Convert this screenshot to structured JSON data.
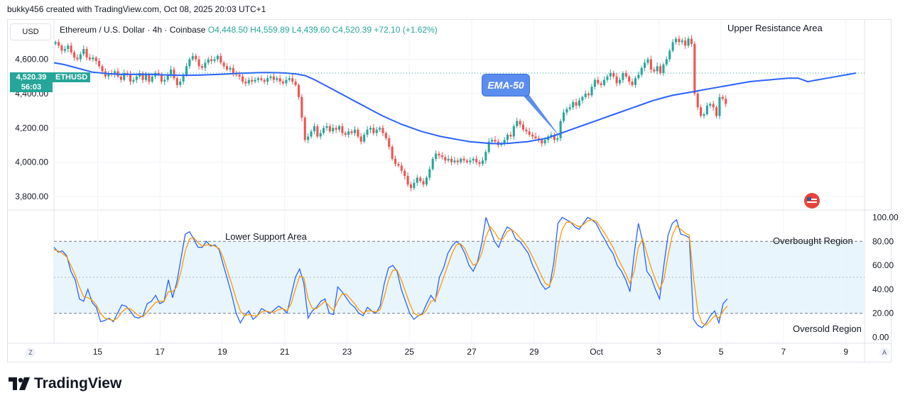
{
  "header": {
    "created_by": "bukky456 created with TradingView.com, Oct 08, 2025 20:03 UTC+1"
  },
  "toolbar": {
    "currency": "USD"
  },
  "legend": {
    "symbol": "Ethereum / U.S. Dollar · 4h · Coinbase",
    "open": "O4,448.50",
    "high": "H4,559.89",
    "low": "L4,439.60",
    "close": "C4,520.39",
    "change": "+72.10 (+1.62%)"
  },
  "price_label": {
    "value": "4,520.39",
    "symbol": "ETHUSD",
    "countdown": "56:03"
  },
  "annotations": {
    "ema": "EMA-50",
    "upper": "Upper Resistance Area",
    "lower": "Lower Support Area",
    "overbought": "Overbought Region",
    "oversold": "Oversold Region"
  },
  "branding": {
    "logo_text": "TradingView",
    "logo_glyph": "17"
  },
  "scale_buttons": {
    "left": "Z",
    "right": "A"
  },
  "colors": {
    "up": "#26a69a",
    "down": "#ef5350",
    "ema": "#2962ff",
    "k_line": "#2962ff",
    "d_line": "#ff9800",
    "band": "#e3f2fd",
    "badge": "#26a69a"
  },
  "chart_data": [
    {
      "type": "candlestick",
      "title": "Ethereum / U.S. Dollar · 4h · Coinbase",
      "y_ticks": [
        "4,600.00",
        "4,400.00",
        "4,200.00",
        "4,000.00",
        "3,800.00"
      ],
      "y_tick_values": [
        4600,
        4400,
        4200,
        4000,
        3800
      ],
      "ylim": [
        3730,
        4830
      ],
      "x_ticks": [
        "15",
        "17",
        "19",
        "21",
        "23",
        "25",
        "27",
        "29",
        "Oct",
        "3",
        "5",
        "7",
        "9"
      ],
      "x_tick_index": [
        14,
        34,
        54,
        74,
        94,
        114,
        134,
        154,
        174,
        194,
        214,
        234,
        254
      ],
      "xlim": [
        0,
        260
      ],
      "close": [
        4700,
        4680,
        4650,
        4660,
        4680,
        4640,
        4610,
        4600,
        4630,
        4660,
        4610,
        4600,
        4610,
        4590,
        4560,
        4530,
        4500,
        4520,
        4510,
        4530,
        4500,
        4480,
        4520,
        4510,
        4470,
        4480,
        4500,
        4520,
        4480,
        4510,
        4470,
        4500,
        4520,
        4510,
        4470,
        4480,
        4510,
        4540,
        4490,
        4450,
        4470,
        4510,
        4560,
        4600,
        4620,
        4600,
        4560,
        4550,
        4580,
        4600,
        4590,
        4600,
        4620,
        4580,
        4560,
        4540,
        4550,
        4520,
        4510,
        4500,
        4470,
        4460,
        4480,
        4470,
        4480,
        4490,
        4480,
        4470,
        4490,
        4500,
        4480,
        4490,
        4470,
        4460,
        4480,
        4490,
        4470,
        4450,
        4380,
        4260,
        4130,
        4150,
        4180,
        4210,
        4150,
        4170,
        4200,
        4210,
        4180,
        4200,
        4190,
        4210,
        4170,
        4160,
        4180,
        4170,
        4190,
        4150,
        4120,
        4160,
        4190,
        4200,
        4170,
        4190,
        4200,
        4170,
        4140,
        4090,
        4020,
        3990,
        3980,
        3950,
        3920,
        3870,
        3850,
        3880,
        3910,
        3890,
        3870,
        3910,
        3960,
        4020,
        4050,
        4040,
        4030,
        4010,
        4020,
        4000,
        4010,
        4000,
        4020,
        4010,
        4000,
        4010,
        4020,
        4000,
        3990,
        4010,
        4060,
        4120,
        4130,
        4120,
        4100,
        4110,
        4130,
        4160,
        4150,
        4210,
        4240,
        4220,
        4190,
        4180,
        4160,
        4150,
        4140,
        4130,
        4110,
        4130,
        4150,
        4160,
        4130,
        4140,
        4240,
        4290,
        4310,
        4320,
        4350,
        4330,
        4360,
        4380,
        4400,
        4390,
        4440,
        4480,
        4460,
        4450,
        4480,
        4500,
        4520,
        4500,
        4460,
        4480,
        4520,
        4500,
        4470,
        4450,
        4490,
        4510,
        4550,
        4580,
        4600,
        4540,
        4530,
        4560,
        4520,
        4570,
        4600,
        4650,
        4700,
        4720,
        4700,
        4710,
        4680,
        4720,
        4690,
        4400,
        4320,
        4270,
        4280,
        4330,
        4340,
        4320,
        4270,
        4380,
        4370,
        4340
      ],
      "ema50": [
        4580,
        4570,
        4555,
        4540,
        4525,
        4520,
        4515,
        4512,
        4512,
        4513,
        4512,
        4510,
        4508,
        4507,
        4507,
        4508,
        4510,
        4512,
        4515,
        4518,
        4520,
        4522,
        4523,
        4522,
        4520,
        4515,
        4505,
        4480,
        4450,
        4420,
        4390,
        4360,
        4330,
        4300,
        4270,
        4245,
        4220,
        4200,
        4180,
        4165,
        4150,
        4140,
        4130,
        4120,
        4115,
        4110,
        4108,
        4110,
        4115,
        4120,
        4130,
        4140,
        4160,
        4180,
        4200,
        4220,
        4240,
        4260,
        4280,
        4300,
        4320,
        4340,
        4360,
        4375,
        4390,
        4400,
        4410,
        4420,
        4430,
        4440,
        4450,
        4460,
        4470,
        4475,
        4480,
        4485,
        4490,
        4490,
        4470,
        4480,
        4490,
        4500,
        4510,
        4520
      ],
      "ema50_index_step": 3.1,
      "ylabel": ""
    },
    {
      "type": "line",
      "title": "",
      "y_ticks": [
        "100.00",
        "80.00",
        "60.00",
        "40.00",
        "20.00",
        "0.00"
      ],
      "y_tick_values": [
        100,
        80,
        60,
        40,
        20,
        0
      ],
      "ylim": [
        -5,
        105
      ],
      "band": [
        20,
        80
      ],
      "midline": 50,
      "series": [
        {
          "values": [
            75,
            71,
            72,
            68,
            55,
            48,
            32,
            30,
            40,
            29,
            25,
            13,
            14,
            16,
            13,
            20,
            27,
            26,
            22,
            17,
            16,
            18,
            28,
            30,
            35,
            28,
            30,
            48,
            33,
            46,
            66,
            86,
            88,
            82,
            75,
            75,
            80,
            76,
            77,
            73,
            60,
            48,
            35,
            20,
            12,
            18,
            22,
            15,
            18,
            24,
            22,
            20,
            23,
            26,
            24,
            20,
            35,
            50,
            57,
            45,
            16,
            22,
            25,
            30,
            32,
            20,
            19,
            42,
            38,
            33,
            28,
            25,
            20,
            18,
            25,
            22,
            20,
            26,
            45,
            58,
            60,
            55,
            40,
            30,
            20,
            15,
            18,
            20,
            28,
            35,
            30,
            50,
            58,
            70,
            76,
            80,
            77,
            70,
            60,
            55,
            63,
            78,
            100,
            90,
            80,
            75,
            85,
            92,
            90,
            82,
            80,
            75,
            70,
            60,
            53,
            45,
            40,
            42,
            62,
            95,
            100,
            98,
            96,
            92,
            90,
            95,
            100,
            98,
            95,
            88,
            82,
            75,
            70,
            60,
            55,
            48,
            38,
            70,
            95,
            80,
            55,
            50,
            40,
            32,
            60,
            85,
            95,
            98,
            86,
            85,
            83,
            15,
            10,
            8,
            12,
            18,
            22,
            12,
            28,
            32
          ],
          "stroke": "#2962ff"
        },
        {
          "values": [
            73,
            72,
            70,
            67,
            60,
            52,
            42,
            34,
            33,
            31,
            27,
            20,
            16,
            15,
            14,
            16,
            21,
            24,
            24,
            21,
            18,
            17,
            21,
            25,
            29,
            30,
            30,
            38,
            38,
            42,
            55,
            72,
            82,
            83,
            79,
            76,
            77,
            77,
            76,
            74,
            66,
            55,
            44,
            32,
            22,
            18,
            19,
            18,
            18,
            21,
            22,
            21,
            21,
            23,
            24,
            22,
            28,
            40,
            51,
            50,
            32,
            24,
            24,
            27,
            30,
            26,
            22,
            30,
            36,
            36,
            32,
            28,
            23,
            20,
            22,
            22,
            21,
            23,
            34,
            48,
            56,
            56,
            48,
            38,
            28,
            20,
            18,
            19,
            23,
            30,
            31,
            40,
            50,
            60,
            70,
            77,
            78,
            74,
            66,
            60,
            62,
            70,
            84,
            92,
            88,
            82,
            82,
            88,
            90,
            87,
            83,
            79,
            74,
            67,
            60,
            52,
            45,
            43,
            52,
            75,
            90,
            96,
            96,
            94,
            92,
            94,
            97,
            98,
            97,
            92,
            87,
            81,
            75,
            67,
            60,
            53,
            45,
            55,
            75,
            82,
            70,
            58,
            48,
            40,
            48,
            68,
            85,
            93,
            90,
            87,
            85,
            50,
            22,
            12,
            10,
            14,
            18,
            16,
            22,
            26
          ],
          "stroke": "#ff9800"
        }
      ]
    }
  ]
}
